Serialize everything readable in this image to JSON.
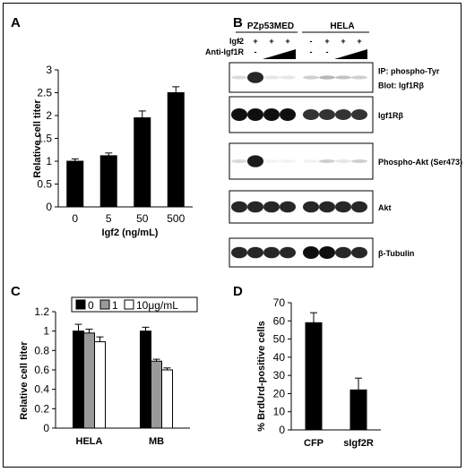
{
  "panels": {
    "a": "A",
    "b": "B",
    "c": "C",
    "d": "D"
  },
  "chart_data": [
    {
      "id": "A",
      "type": "bar",
      "categories": [
        "0",
        "5",
        "50",
        "500"
      ],
      "values": [
        1.0,
        1.12,
        1.95,
        2.5
      ],
      "errors": [
        0.05,
        0.06,
        0.15,
        0.13
      ],
      "xlabel": "Igf2 (ng/mL)",
      "ylabel": "Relative cell titer",
      "ylim": [
        0,
        3
      ],
      "yticks": [
        "0",
        "0.5",
        "1",
        "1.5",
        "2",
        "2.5",
        "3"
      ],
      "grid": false,
      "color": "#000000"
    },
    {
      "id": "C",
      "type": "bar",
      "categories": [
        "HELA",
        "MB"
      ],
      "series": [
        {
          "name": "0",
          "values": [
            1.0,
            1.0
          ],
          "errors": [
            0.07,
            0.04
          ],
          "color": "#000000"
        },
        {
          "name": "1",
          "values": [
            0.98,
            0.69
          ],
          "errors": [
            0.04,
            0.02
          ],
          "color": "#999999"
        },
        {
          "name": "10μg/mL",
          "values": [
            0.89,
            0.6
          ],
          "errors": [
            0.05,
            0.02
          ],
          "color": "#ffffff"
        }
      ],
      "ylabel": "Relative cell titer",
      "ylim": [
        0,
        1.2
      ],
      "yticks": [
        "0",
        "0.2",
        "0.4",
        "0.6",
        "0.8",
        "1",
        "1.2"
      ],
      "legend_position": "top",
      "grid": false
    },
    {
      "id": "D",
      "type": "bar",
      "categories": [
        "CFP",
        "sIgf2R"
      ],
      "values": [
        59,
        22
      ],
      "errors": [
        5.5,
        6.5
      ],
      "ylabel": "% BrdUrd-positive cells",
      "ylim": [
        0,
        70
      ],
      "yticks": [
        "0",
        "10",
        "20",
        "30",
        "40",
        "50",
        "60",
        "70"
      ],
      "grid": false,
      "color": "#000000"
    }
  ],
  "blot": {
    "cell_lines": [
      "PZp53MED",
      "HELA"
    ],
    "row_labels": [
      "Igf2",
      "Anti-Igf1R"
    ],
    "igf2_signs": [
      "-",
      "+",
      "+",
      "+",
      "-",
      "+",
      "+",
      "+"
    ],
    "anti_signs": [
      "-",
      "-",
      "",
      "",
      " -",
      "-",
      "",
      ""
    ],
    "bands": [
      {
        "label": "IP: phospho-Tyr",
        "label2": "Blot: Igf1Rβ",
        "intensity": [
          0.15,
          0.9,
          0.1,
          0.1,
          0.2,
          0.3,
          0.25,
          0.2
        ]
      },
      {
        "label": "Igf1Rβ",
        "intensity": [
          1,
          1,
          1,
          1,
          0.85,
          0.85,
          0.85,
          0.85
        ]
      },
      {
        "label": "Phospho-Akt (Ser473)",
        "intensity": [
          0.15,
          0.95,
          0.05,
          0.05,
          0.05,
          0.2,
          0.1,
          0.2
        ]
      },
      {
        "label": "Akt",
        "intensity": [
          0.9,
          0.9,
          0.9,
          0.9,
          0.9,
          0.9,
          0.9,
          0.9
        ]
      },
      {
        "label": "β-Tubulin",
        "intensity": [
          0.9,
          0.9,
          0.9,
          0.9,
          1,
          1,
          0.9,
          0.9
        ]
      }
    ]
  }
}
